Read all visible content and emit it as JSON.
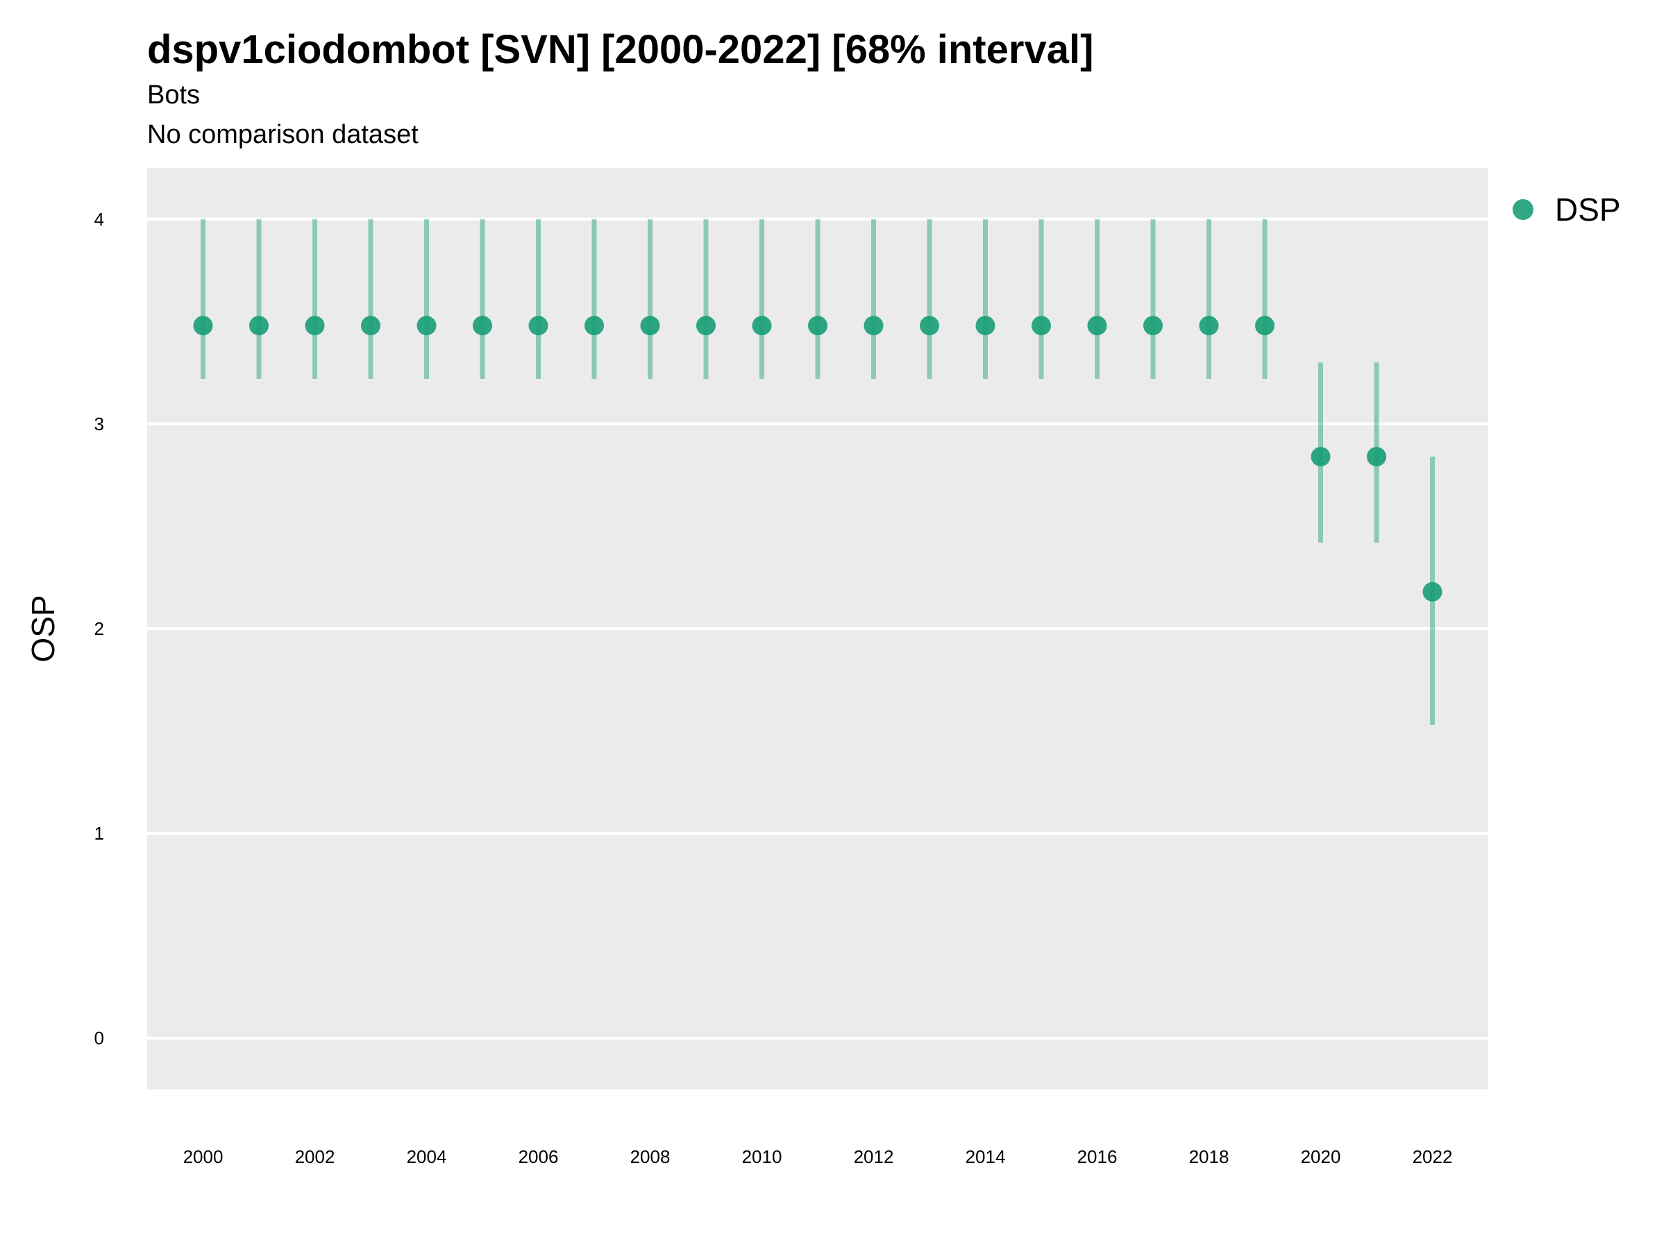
{
  "chart_data": {
    "type": "scatter",
    "title": "dspv1ciodombot [SVN] [2000-2022] [68% interval]",
    "subtitle": "Bots",
    "caption": "No comparison dataset",
    "xlabel": "",
    "ylabel": "OSP",
    "ylim": [
      -0.25,
      4.25
    ],
    "xlim": [
      1999,
      2023
    ],
    "yticks": [
      0,
      1,
      2,
      3,
      4
    ],
    "xticks": [
      2000,
      2002,
      2004,
      2006,
      2008,
      2010,
      2012,
      2014,
      2016,
      2018,
      2020,
      2022
    ],
    "grid": true,
    "legend_position": "right",
    "series": [
      {
        "name": "DSP",
        "color": "#1b9e77",
        "points": [
          {
            "x": 2000,
            "y": 3.48,
            "low": 3.22,
            "high": 4.0
          },
          {
            "x": 2001,
            "y": 3.48,
            "low": 3.22,
            "high": 4.0
          },
          {
            "x": 2002,
            "y": 3.48,
            "low": 3.22,
            "high": 4.0
          },
          {
            "x": 2003,
            "y": 3.48,
            "low": 3.22,
            "high": 4.0
          },
          {
            "x": 2004,
            "y": 3.48,
            "low": 3.22,
            "high": 4.0
          },
          {
            "x": 2005,
            "y": 3.48,
            "low": 3.22,
            "high": 4.0
          },
          {
            "x": 2006,
            "y": 3.48,
            "low": 3.22,
            "high": 4.0
          },
          {
            "x": 2007,
            "y": 3.48,
            "low": 3.22,
            "high": 4.0
          },
          {
            "x": 2008,
            "y": 3.48,
            "low": 3.22,
            "high": 4.0
          },
          {
            "x": 2009,
            "y": 3.48,
            "low": 3.22,
            "high": 4.0
          },
          {
            "x": 2010,
            "y": 3.48,
            "low": 3.22,
            "high": 4.0
          },
          {
            "x": 2011,
            "y": 3.48,
            "low": 3.22,
            "high": 4.0
          },
          {
            "x": 2012,
            "y": 3.48,
            "low": 3.22,
            "high": 4.0
          },
          {
            "x": 2013,
            "y": 3.48,
            "low": 3.22,
            "high": 4.0
          },
          {
            "x": 2014,
            "y": 3.48,
            "low": 3.22,
            "high": 4.0
          },
          {
            "x": 2015,
            "y": 3.48,
            "low": 3.22,
            "high": 4.0
          },
          {
            "x": 2016,
            "y": 3.48,
            "low": 3.22,
            "high": 4.0
          },
          {
            "x": 2017,
            "y": 3.48,
            "low": 3.22,
            "high": 4.0
          },
          {
            "x": 2018,
            "y": 3.48,
            "low": 3.22,
            "high": 4.0
          },
          {
            "x": 2019,
            "y": 3.48,
            "low": 3.22,
            "high": 4.0
          },
          {
            "x": 2020,
            "y": 2.84,
            "low": 2.42,
            "high": 3.3
          },
          {
            "x": 2021,
            "y": 2.84,
            "low": 2.42,
            "high": 3.3
          },
          {
            "x": 2022,
            "y": 2.18,
            "low": 1.53,
            "high": 2.84
          }
        ]
      }
    ]
  }
}
